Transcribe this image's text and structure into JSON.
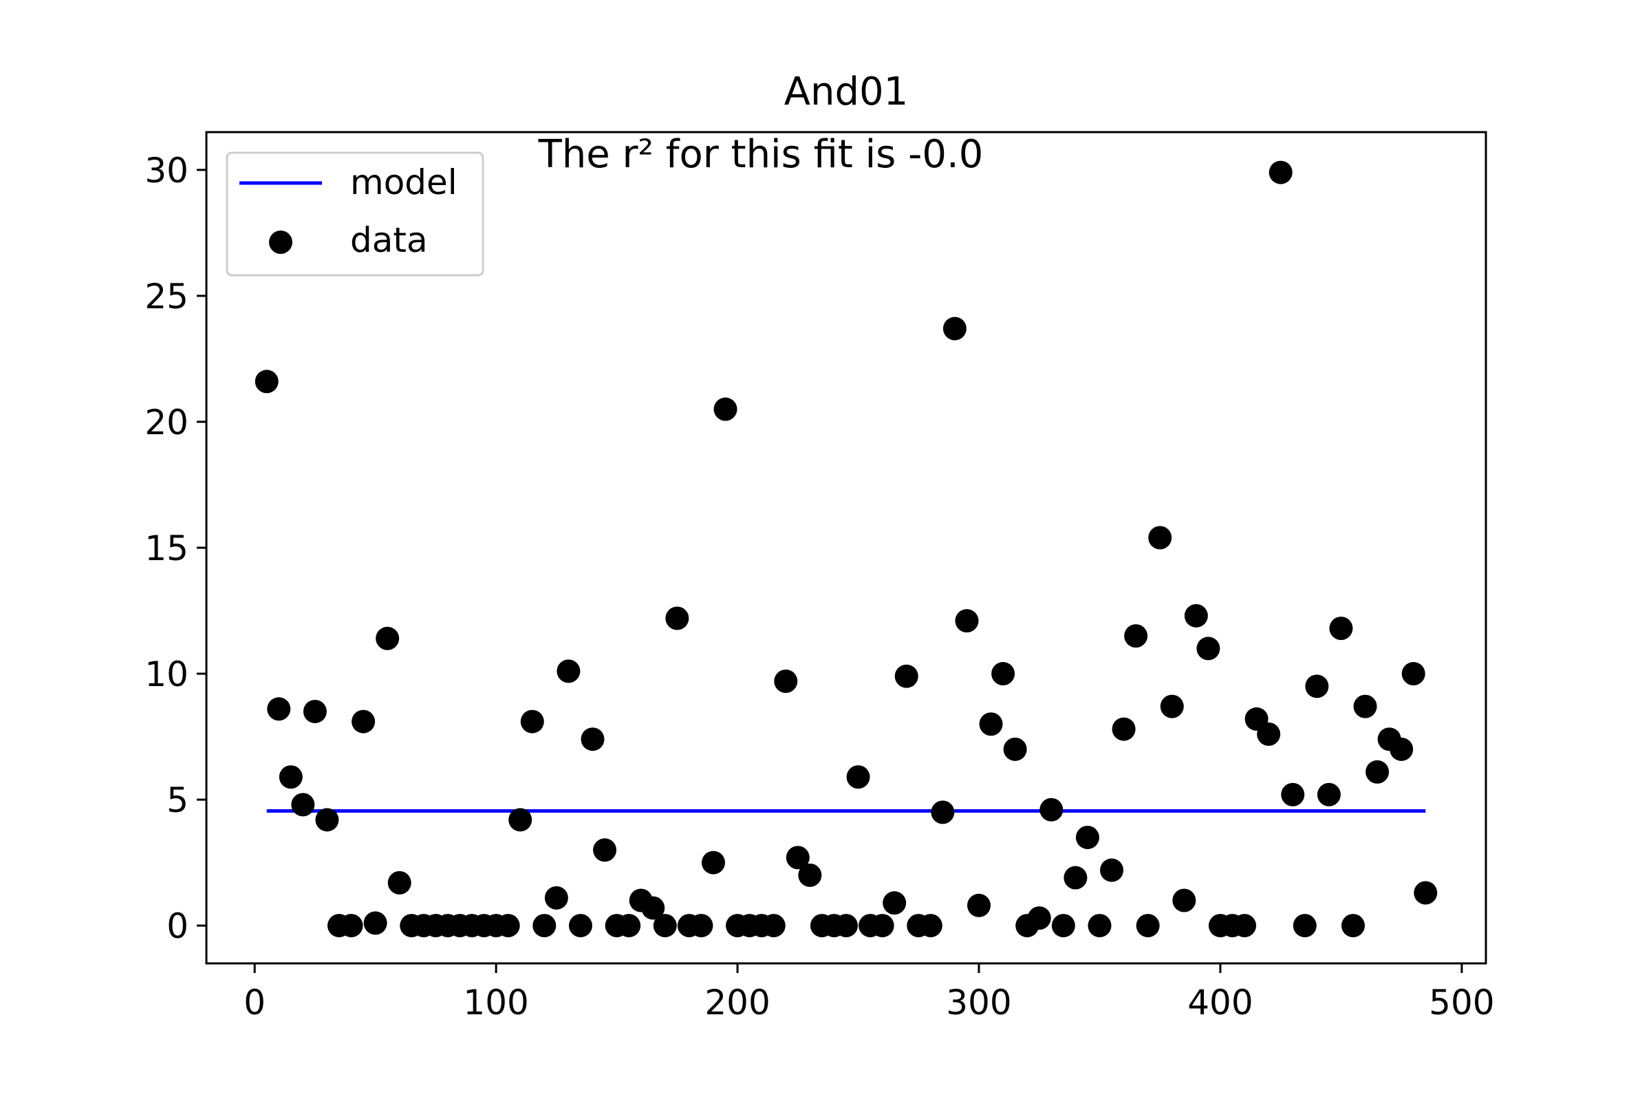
{
  "chart_data": {
    "type": "scatter",
    "title": "And01",
    "annotation": "The r² for this fit is -0.0",
    "xlabel": "",
    "ylabel": "",
    "xlim": [
      -20,
      510
    ],
    "ylim": [
      -1.5,
      31.5
    ],
    "xticks": [
      0,
      100,
      200,
      300,
      400,
      500
    ],
    "yticks": [
      0,
      5,
      10,
      15,
      20,
      25,
      30
    ],
    "grid": false,
    "legend_position": "top-left",
    "colors": {
      "model": "#0000ff",
      "data": "#000000",
      "axes": "#000000",
      "legend_border": "#cccccc"
    },
    "series": [
      {
        "name": "model",
        "kind": "line",
        "x": [
          5,
          485
        ],
        "y": [
          4.55,
          4.55
        ]
      },
      {
        "name": "data",
        "kind": "scatter",
        "x": [
          5,
          10,
          15,
          20,
          25,
          30,
          35,
          40,
          45,
          50,
          55,
          60,
          65,
          70,
          75,
          80,
          85,
          90,
          95,
          100,
          105,
          110,
          115,
          120,
          125,
          130,
          135,
          140,
          145,
          150,
          155,
          160,
          165,
          170,
          175,
          180,
          185,
          190,
          195,
          200,
          205,
          210,
          215,
          220,
          225,
          230,
          235,
          240,
          245,
          250,
          255,
          260,
          265,
          270,
          275,
          280,
          285,
          290,
          295,
          300,
          305,
          310,
          315,
          320,
          325,
          330,
          335,
          340,
          345,
          350,
          355,
          360,
          365,
          370,
          375,
          380,
          385,
          390,
          395,
          400,
          405,
          410,
          415,
          420,
          425,
          430,
          435,
          440,
          445,
          450,
          455,
          460,
          465,
          470,
          475,
          480,
          485
        ],
        "y": [
          21.6,
          8.6,
          5.9,
          4.8,
          8.5,
          4.2,
          0,
          0,
          8.1,
          0.1,
          11.4,
          1.7,
          0,
          0,
          0,
          0,
          0,
          0,
          0,
          0,
          0,
          4.2,
          8.1,
          0,
          1.1,
          10.1,
          0,
          7.4,
          3.0,
          0,
          0,
          1.0,
          0.7,
          0,
          12.2,
          0,
          0,
          2.5,
          20.5,
          0,
          0,
          0,
          0,
          9.7,
          2.7,
          2.0,
          0,
          0,
          0,
          5.9,
          0,
          0,
          0.9,
          9.9,
          0,
          0,
          4.5,
          23.7,
          12.1,
          0.8,
          8.0,
          10.0,
          7.0,
          0,
          0.3,
          4.6,
          0,
          1.9,
          3.5,
          0,
          2.2,
          7.8,
          11.5,
          0,
          15.4,
          8.7,
          1.0,
          12.3,
          11.0,
          0,
          0,
          0,
          8.2,
          7.6,
          29.9,
          5.2,
          0,
          9.5,
          5.2,
          11.8,
          0,
          8.7,
          6.1,
          7.4,
          7.0,
          10.0,
          1.3
        ]
      }
    ]
  }
}
